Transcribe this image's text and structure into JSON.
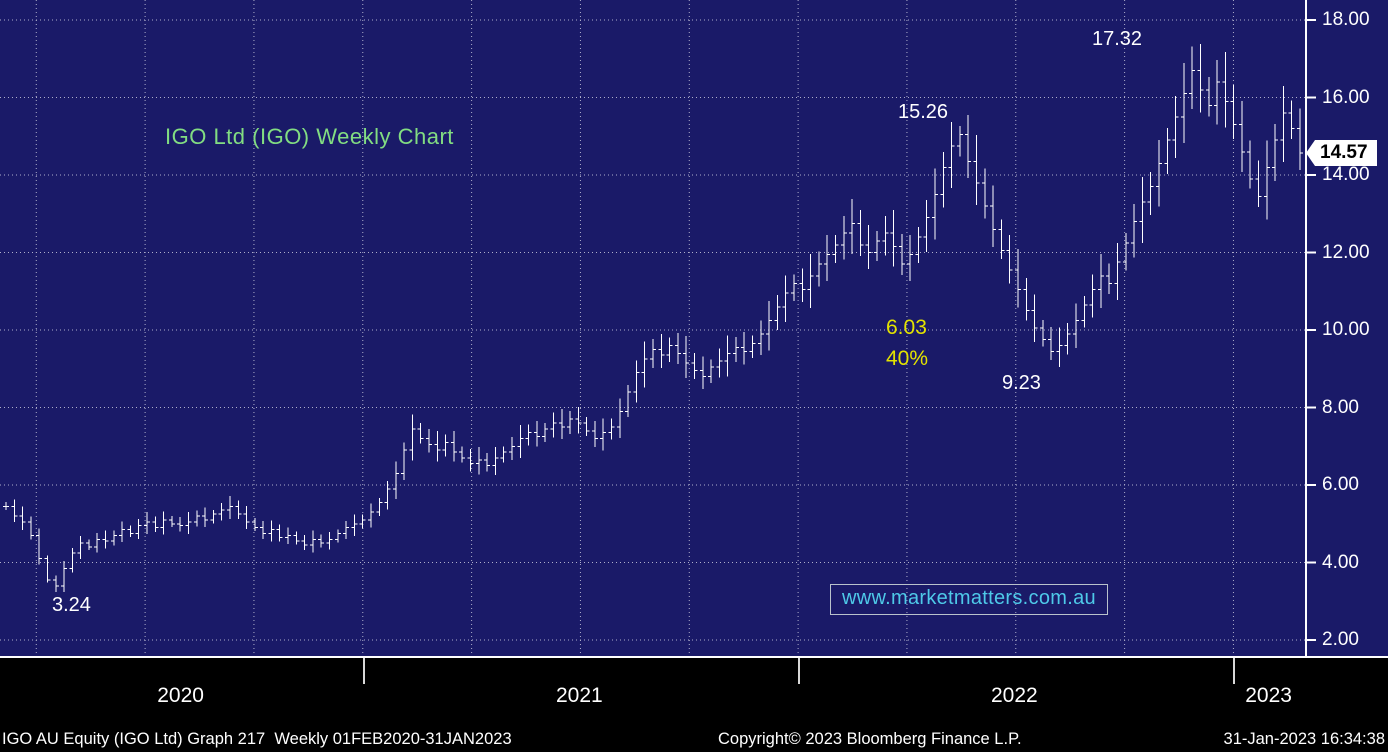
{
  "title": "IGO Ltd (IGO) Weekly Chart",
  "last_price": "14.57",
  "annotations": {
    "low_2020": "3.24",
    "peak_apr_2022": "15.26",
    "drop_amount": "6.03",
    "drop_percent": "40%",
    "low_jul_2022": "9.23",
    "peak_nov_2022": "17.32"
  },
  "website_box": "www.marketmatters.com.au",
  "x_axis": {
    "years": [
      "2020",
      "2021",
      "2022",
      "2023"
    ]
  },
  "footer": {
    "left": "IGO AU Equity (IGO Ltd) Graph 217  Weekly 01FEB2020-31JAN2023",
    "center": "Copyright© 2023 Bloomberg Finance L.P.",
    "right": "31-Jan-2023 16:34:38"
  },
  "colors": {
    "background": "#1a1a68",
    "grid": "#c9c9dd",
    "bars": "#ffffff",
    "axis": "#ffffff",
    "title_green": "#82dd82",
    "annotation_white": "#ffffff",
    "annotation_yellow": "#e3e300",
    "website_cyan": "#4ec9e8",
    "last_price_bg": "#ffffff",
    "last_price_text": "#000000",
    "footer_bg": "#000000",
    "footer_text": "#ffffff"
  },
  "chart_data": {
    "type": "bar",
    "subtype": "ohlc-weekly",
    "title": "IGO Ltd (IGO) Weekly Chart",
    "series_name": "IGO AU Equity",
    "frequency": "weekly",
    "x_range": [
      "01FEB2020",
      "31JAN2023"
    ],
    "ylim": [
      1.6,
      18.5
    ],
    "y_ticks": [
      18,
      16,
      14,
      12,
      10,
      8,
      6,
      4,
      2
    ],
    "y_tick_labels": [
      "18.00",
      "16.00",
      "14.00",
      "12.00",
      "10.00",
      "8.00",
      "6.00",
      "4.00",
      "2.00"
    ],
    "grid": "dotted",
    "legend": "none",
    "weekly_closes": [
      5.45,
      5.2,
      5.05,
      4.7,
      4.1,
      3.55,
      3.4,
      3.85,
      4.25,
      4.5,
      4.4,
      4.6,
      4.55,
      4.7,
      4.85,
      4.75,
      4.95,
      5.05,
      4.9,
      5.1,
      5.0,
      4.95,
      5.05,
      5.2,
      5.1,
      5.25,
      5.35,
      5.45,
      5.25,
      5.05,
      4.9,
      4.75,
      4.85,
      4.65,
      4.7,
      4.55,
      4.45,
      4.6,
      4.5,
      4.6,
      4.75,
      4.9,
      5.0,
      5.1,
      5.3,
      5.55,
      5.9,
      6.3,
      6.9,
      7.45,
      7.2,
      7.05,
      6.9,
      7.1,
      6.85,
      6.7,
      6.55,
      6.65,
      6.5,
      6.7,
      6.85,
      7.0,
      7.2,
      7.35,
      7.25,
      7.45,
      7.6,
      7.5,
      7.7,
      7.6,
      7.4,
      7.2,
      7.35,
      7.5,
      7.9,
      8.4,
      8.9,
      9.25,
      9.5,
      9.35,
      9.6,
      9.4,
      9.15,
      8.95,
      8.8,
      9.05,
      9.2,
      9.4,
      9.55,
      9.45,
      9.65,
      9.9,
      10.25,
      10.6,
      10.95,
      11.2,
      11.05,
      11.4,
      11.7,
      11.95,
      12.2,
      12.5,
      12.75,
      12.2,
      12.0,
      12.3,
      12.5,
      12.15,
      11.7,
      11.95,
      12.4,
      12.9,
      13.5,
      14.2,
      14.75,
      15.05,
      14.35,
      13.8,
      13.2,
      12.6,
      12.05,
      11.55,
      11.05,
      10.5,
      10.05,
      9.75,
      9.45,
      9.6,
      9.9,
      10.25,
      10.65,
      11.05,
      11.4,
      11.2,
      11.75,
      12.25,
      12.8,
      13.3,
      13.7,
      14.3,
      14.9,
      15.5,
      16.1,
      16.7,
      16.2,
      15.8,
      16.4,
      15.9,
      15.3,
      14.6,
      13.9,
      13.45,
      14.2,
      14.9,
      15.6,
      15.2,
      14.57
    ],
    "extremes": [
      {
        "week": 6,
        "low": 3.24
      },
      {
        "week": 49,
        "high": 7.82
      },
      {
        "week": 115,
        "high": 15.26
      },
      {
        "week": 126,
        "low": 9.23
      },
      {
        "week": 143,
        "high": 17.32
      },
      {
        "week": 151,
        "low": 13.18
      },
      {
        "week": 154,
        "high": 16.3
      }
    ],
    "key_points": [
      {
        "value": 3.24,
        "type": "low",
        "approx_date": "Mar 2020"
      },
      {
        "value": 15.26,
        "type": "high",
        "approx_date": "Apr 2022"
      },
      {
        "value": 9.23,
        "type": "low",
        "approx_date": "Jul 2022"
      },
      {
        "value": 17.32,
        "type": "high",
        "approx_date": "Nov 2022"
      },
      {
        "value": 14.57,
        "type": "last",
        "approx_date": "31 Jan 2023"
      }
    ],
    "drawdown_note": {
      "amount": 6.03,
      "percent": "40%"
    }
  }
}
